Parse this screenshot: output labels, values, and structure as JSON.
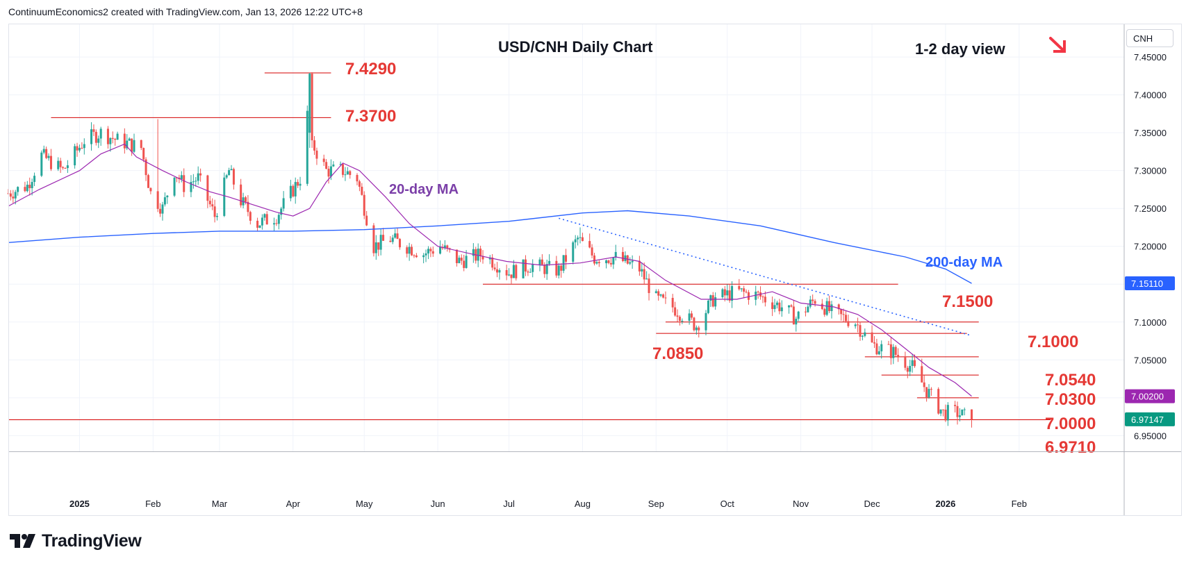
{
  "header": {
    "attribution": "ContinuumEconomics2 created with TradingView.com, Jan 13, 2026 12:22 UTC+8"
  },
  "branding": {
    "logo_text": "TradingView"
  },
  "symbol": "CNH",
  "colors": {
    "up": "#26a69a",
    "down": "#ef5350",
    "ma20": "#9c27b0",
    "ma200": "#2962ff",
    "level_line": "#d50000",
    "level_label": "#e53935",
    "grid": "#f0f3fa",
    "axis_text": "#131722",
    "trendline": "#2962ff",
    "arrow": "#f23645"
  },
  "chart_data": {
    "type": "candlestick",
    "title": "USD/CNH Daily Chart",
    "annotations": {
      "view": "1-2 day view",
      "view_direction": "down-right arrow",
      "ma20_label": "20-day MA",
      "ma200_label": "200-day MA"
    },
    "y_axis": {
      "range": [
        6.92,
        7.47
      ],
      "ticks": [
        "7.45000",
        "7.40000",
        "7.35000",
        "7.30000",
        "7.25000",
        "7.20000",
        "7.10000",
        "7.05000",
        "7.00000",
        "6.95000"
      ],
      "tick_values": [
        7.45,
        7.4,
        7.35,
        7.3,
        7.25,
        7.2,
        7.1,
        7.05,
        7.0,
        6.95
      ],
      "badges": [
        {
          "text": "7.15110",
          "value": 7.1511,
          "role": "200-day MA",
          "color": "#2962ff"
        },
        {
          "text": "7.00200",
          "value": 7.002,
          "role": "20-day MA",
          "color": "#9c27b0"
        },
        {
          "text": "6.97147",
          "value": 6.97147,
          "role": "last price",
          "color": "#089981"
        }
      ]
    },
    "x_axis": {
      "start": "2024-12-02",
      "end": "2026-02-20",
      "ticks": [
        {
          "label": "2025",
          "date": "2025-01-01",
          "bold": true
        },
        {
          "label": "Feb",
          "date": "2025-02-01"
        },
        {
          "label": "Mar",
          "date": "2025-03-01"
        },
        {
          "label": "Apr",
          "date": "2025-04-01"
        },
        {
          "label": "May",
          "date": "2025-05-01"
        },
        {
          "label": "Jun",
          "date": "2025-06-01"
        },
        {
          "label": "Jul",
          "date": "2025-07-01"
        },
        {
          "label": "Aug",
          "date": "2025-08-01"
        },
        {
          "label": "Sep",
          "date": "2025-09-01"
        },
        {
          "label": "Oct",
          "date": "2025-10-01"
        },
        {
          "label": "Nov",
          "date": "2025-11-01"
        },
        {
          "label": "Dec",
          "date": "2025-12-01"
        },
        {
          "label": "2026",
          "date": "2026-01-01",
          "bold": true
        },
        {
          "label": "Feb",
          "date": "2026-02-01"
        }
      ]
    },
    "levels": [
      {
        "label": "7.4290",
        "value": 7.429,
        "from": "2025-03-20",
        "to": "2025-04-17"
      },
      {
        "label": "7.3700",
        "value": 7.37,
        "from": "2025-12-20",
        "to": "2025-04-17",
        "from_actual": "2024-12-20"
      },
      {
        "label": "7.1500",
        "value": 7.15,
        "from": "2025-06-20",
        "to": "2025-12-12"
      },
      {
        "label": "7.1000",
        "value": 7.1,
        "from": "2025-09-05",
        "to": "2026-01-15"
      },
      {
        "label": "7.0850",
        "value": 7.085,
        "from": "2025-09-01",
        "to": "2026-01-10"
      },
      {
        "label": "7.0540",
        "value": 7.054,
        "from": "2025-11-28",
        "to": "2026-01-15"
      },
      {
        "label": "7.0300",
        "value": 7.03,
        "from": "2025-12-05",
        "to": "2026-01-15"
      },
      {
        "label": "7.0000",
        "value": 7.0,
        "from": "2025-12-20",
        "to": "2026-01-15"
      },
      {
        "label": "6.9710",
        "value": 6.971,
        "from": "2024-12-01",
        "to": "2026-01-15"
      }
    ],
    "trendline": {
      "from": {
        "date": "2025-07-22",
        "value": 7.237
      },
      "to": {
        "date": "2026-01-12",
        "value": 7.082
      }
    },
    "ma20": [
      [
        "2024-12-02",
        7.253
      ],
      [
        "2024-12-15",
        7.275
      ],
      [
        "2025-01-01",
        7.3
      ],
      [
        "2025-01-10",
        7.322
      ],
      [
        "2025-01-20",
        7.335
      ],
      [
        "2025-01-25",
        7.318
      ],
      [
        "2025-02-05",
        7.3
      ],
      [
        "2025-02-15",
        7.285
      ],
      [
        "2025-02-25",
        7.272
      ],
      [
        "2025-03-05",
        7.265
      ],
      [
        "2025-03-15",
        7.255
      ],
      [
        "2025-03-25",
        7.245
      ],
      [
        "2025-04-01",
        7.24
      ],
      [
        "2025-04-08",
        7.25
      ],
      [
        "2025-04-15",
        7.285
      ],
      [
        "2025-04-22",
        7.31
      ],
      [
        "2025-04-29",
        7.3
      ],
      [
        "2025-05-10",
        7.265
      ],
      [
        "2025-05-20",
        7.23
      ],
      [
        "2025-06-01",
        7.2
      ],
      [
        "2025-06-15",
        7.19
      ],
      [
        "2025-06-30",
        7.18
      ],
      [
        "2025-07-15",
        7.175
      ],
      [
        "2025-07-31",
        7.178
      ],
      [
        "2025-08-15",
        7.186
      ],
      [
        "2025-08-25",
        7.18
      ],
      [
        "2025-09-05",
        7.155
      ],
      [
        "2025-09-20",
        7.13
      ],
      [
        "2025-10-05",
        7.13
      ],
      [
        "2025-10-20",
        7.14
      ],
      [
        "2025-11-01",
        7.125
      ],
      [
        "2025-11-15",
        7.12
      ],
      [
        "2025-11-25",
        7.11
      ],
      [
        "2025-12-05",
        7.09
      ],
      [
        "2025-12-15",
        7.065
      ],
      [
        "2025-12-25",
        7.04
      ],
      [
        "2026-01-05",
        7.02
      ],
      [
        "2026-01-12",
        7.002
      ]
    ],
    "ma200": [
      [
        "2024-12-02",
        7.205
      ],
      [
        "2025-01-01",
        7.212
      ],
      [
        "2025-02-01",
        7.217
      ],
      [
        "2025-03-01",
        7.22
      ],
      [
        "2025-04-01",
        7.22
      ],
      [
        "2025-05-01",
        7.222
      ],
      [
        "2025-06-01",
        7.227
      ],
      [
        "2025-07-01",
        7.233
      ],
      [
        "2025-08-01",
        7.244
      ],
      [
        "2025-08-20",
        7.247
      ],
      [
        "2025-09-15",
        7.24
      ],
      [
        "2025-10-15",
        7.227
      ],
      [
        "2025-11-15",
        7.205
      ],
      [
        "2025-12-15",
        7.186
      ],
      [
        "2026-01-01",
        7.17
      ],
      [
        "2026-01-12",
        7.151
      ]
    ],
    "price_path": [
      [
        "2024-12-02",
        7.27
      ],
      [
        "2024-12-10",
        7.28
      ],
      [
        "2024-12-16",
        7.32
      ],
      [
        "2024-12-25",
        7.3
      ],
      [
        "2025-01-03",
        7.34
      ],
      [
        "2025-01-10",
        7.35
      ],
      [
        "2025-01-17",
        7.34
      ],
      [
        "2025-01-27",
        7.33
      ],
      [
        "2025-01-31",
        7.27
      ],
      [
        "2025-02-05",
        7.25
      ],
      [
        "2025-02-10",
        7.3
      ],
      [
        "2025-02-14",
        7.28
      ],
      [
        "2025-02-20",
        7.29
      ],
      [
        "2025-02-27",
        7.24
      ],
      [
        "2025-03-05",
        7.3
      ],
      [
        "2025-03-10",
        7.26
      ],
      [
        "2025-03-17",
        7.23
      ],
      [
        "2025-03-25",
        7.24
      ],
      [
        "2025-03-31",
        7.27
      ],
      [
        "2025-04-04",
        7.29
      ],
      [
        "2025-04-08",
        7.4
      ],
      [
        "2025-04-10",
        7.33
      ],
      [
        "2025-04-15",
        7.3
      ],
      [
        "2025-04-22",
        7.3
      ],
      [
        "2025-04-28",
        7.29
      ],
      [
        "2025-05-05",
        7.2
      ],
      [
        "2025-05-12",
        7.21
      ],
      [
        "2025-05-19",
        7.2
      ],
      [
        "2025-05-26",
        7.19
      ],
      [
        "2025-06-02",
        7.2
      ],
      [
        "2025-06-10",
        7.18
      ],
      [
        "2025-06-20",
        7.19
      ],
      [
        "2025-07-01",
        7.165
      ],
      [
        "2025-07-10",
        7.175
      ],
      [
        "2025-07-22",
        7.168
      ],
      [
        "2025-07-30",
        7.21
      ],
      [
        "2025-08-06",
        7.185
      ],
      [
        "2025-08-15",
        7.185
      ],
      [
        "2025-08-25",
        7.17
      ],
      [
        "2025-09-01",
        7.13
      ],
      [
        "2025-09-08",
        7.12
      ],
      [
        "2025-09-18",
        7.095
      ],
      [
        "2025-09-25",
        7.13
      ],
      [
        "2025-10-05",
        7.14
      ],
      [
        "2025-10-14",
        7.135
      ],
      [
        "2025-10-24",
        7.12
      ],
      [
        "2025-10-30",
        7.105
      ],
      [
        "2025-11-07",
        7.13
      ],
      [
        "2025-11-15",
        7.11
      ],
      [
        "2025-11-24",
        7.1
      ],
      [
        "2025-12-01",
        7.07
      ],
      [
        "2025-12-10",
        7.06
      ],
      [
        "2025-12-18",
        7.04
      ],
      [
        "2025-12-24",
        7.01
      ],
      [
        "2025-12-31",
        6.98
      ],
      [
        "2026-01-06",
        6.98
      ],
      [
        "2026-01-09",
        6.975
      ],
      [
        "2026-01-12",
        6.971
      ]
    ],
    "last_price": 6.97147
  }
}
